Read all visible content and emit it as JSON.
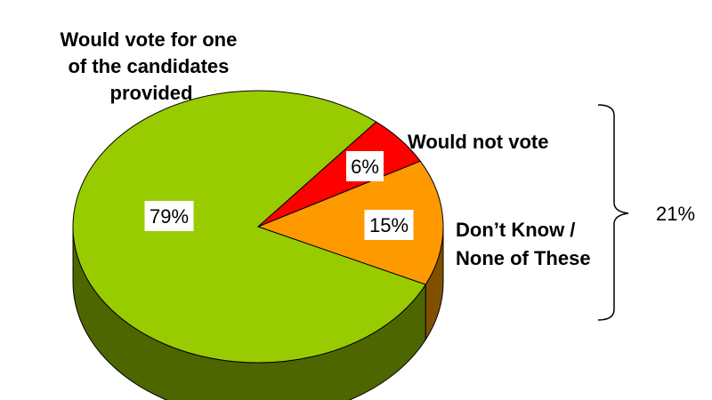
{
  "chart_data": {
    "type": "pie",
    "style": "3d",
    "slices": [
      {
        "label": "Would vote for one of the candidates provided",
        "label_lines": [
          "Would vote for one",
          "of the candidates",
          "provided"
        ],
        "value": 79,
        "value_label": "79%",
        "color": "#99cc00",
        "side_color": "#4d6600"
      },
      {
        "label": "Would not vote",
        "label_lines": [
          "Would not vote"
        ],
        "value": 6,
        "value_label": "6%",
        "color": "#ff0000",
        "side_color": "#800000"
      },
      {
        "label": "Don’t Know / None of These",
        "label_lines": [
          "Don’t Know /",
          "None of These"
        ],
        "value": 15,
        "value_label": "15%",
        "color": "#ff9900",
        "side_color": "#805000"
      }
    ],
    "bracket": {
      "label": "21%",
      "value": 21,
      "groups": [
        "Would not vote",
        "Don’t Know / None of These"
      ]
    }
  }
}
